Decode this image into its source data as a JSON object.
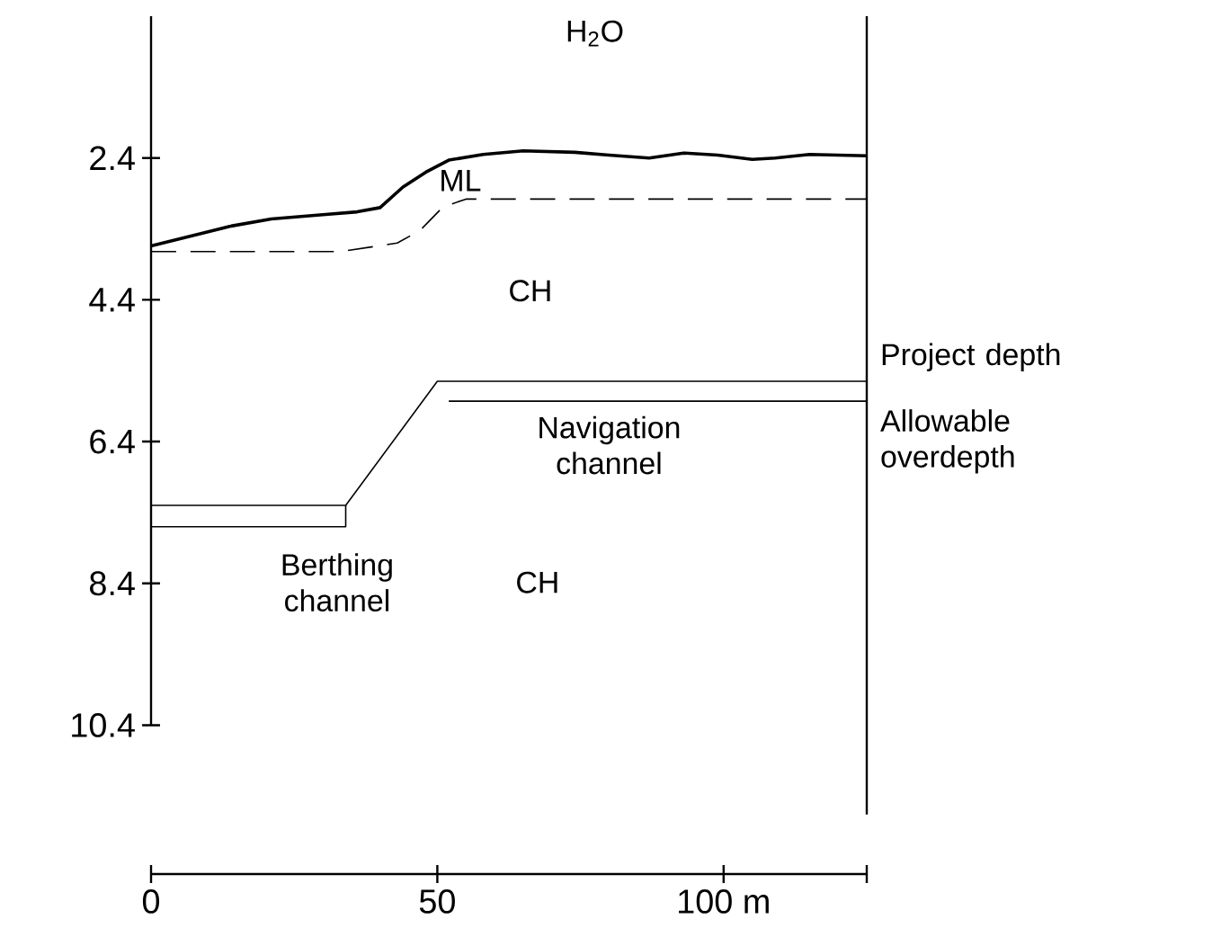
{
  "chart_data": {
    "type": "line",
    "xlim": [
      0,
      125
    ],
    "xticks": [
      0,
      50,
      {
        "value": 100,
        "label": "100 m"
      },
      {
        "value": 125,
        "label": null
      }
    ],
    "ylim": [
      12.5,
      0.4
    ],
    "yticks": [
      2.4,
      4.4,
      6.4,
      8.4,
      10.4
    ],
    "series": [
      {
        "color": "#000000",
        "line_style": "solid",
        "x": [
          0,
          14,
          21,
          30,
          36,
          40,
          44,
          48,
          52,
          58,
          65,
          74,
          80,
          87,
          93,
          99,
          105,
          109,
          115,
          125
        ],
        "values": [
          3.64,
          3.36,
          3.26,
          3.2,
          3.16,
          3.1,
          2.81,
          2.6,
          2.43,
          2.35,
          2.3,
          2.32,
          2.36,
          2.4,
          2.33,
          2.36,
          2.42,
          2.4,
          2.35,
          2.37
        ]
      },
      {
        "name": "ML",
        "color": "#000000",
        "line_style": "dashed",
        "x": [
          0,
          33,
          43,
          47,
          51,
          55,
          125
        ],
        "values": [
          3.72,
          3.72,
          3.6,
          3.42,
          3.09,
          2.98,
          2.98
        ]
      },
      {
        "name": "Project depth",
        "color": "#000000",
        "line_style": "solid",
        "x": [
          0,
          34,
          50,
          125
        ],
        "values": [
          7.3,
          7.3,
          5.55,
          5.55
        ]
      },
      {
        "name": "Allowable overdepth",
        "color": "#000000",
        "line_style": "solid",
        "x": [
          0,
          34,
          34,
          43,
          52,
          125
        ],
        "values": [
          7.6,
          7.6,
          7.3,
          null,
          5.83,
          5.83
        ]
      }
    ],
    "annotations": [
      "H$_{2}$O",
      "CH",
      "Navigation channel",
      "Berthing channel",
      "CH"
    ]
  }
}
